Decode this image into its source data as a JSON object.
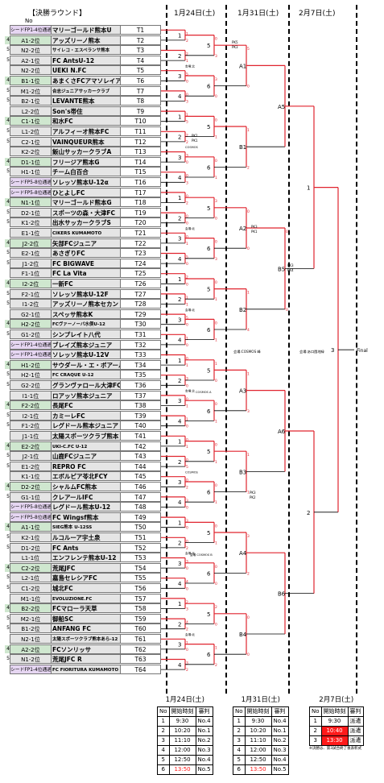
{
  "title": "【決勝ラウンド】",
  "no_label": "No",
  "date_headers": [
    "1月24日(土)",
    "1月31日(土)",
    "2月7日(土)"
  ],
  "teams": [
    {
      "rank": "シードFP1-4位通過",
      "name": "マリーゴールド熊本U",
      "t": "T1"
    },
    {
      "rank": "A1-2位",
      "name": "アッズリーノ熊本",
      "t": "T2"
    },
    {
      "rank": "N2-2位",
      "name": "サイレコ・エスペランサ熊本",
      "t": "T3"
    },
    {
      "rank": "A2-1位",
      "name": "FC AntsU-12",
      "t": "T4"
    },
    {
      "rank": "N2-2位",
      "name": "UEKI N.FC",
      "t": "T5"
    },
    {
      "rank": "B1-1位",
      "name": "あまくさFCアマソレイア",
      "t": "T6"
    },
    {
      "rank": "M1-2位",
      "name": "合志ジュニアサッカークラブ",
      "t": "T7"
    },
    {
      "rank": "B2-1位",
      "name": "LEVANTE熊本",
      "t": "T8"
    },
    {
      "rank": "L2-2位",
      "name": "Son's帯住",
      "t": "T9"
    },
    {
      "rank": "C1-1位",
      "name": "和水FC",
      "t": "T10"
    },
    {
      "rank": "L1-2位",
      "name": "アルフィーオ熊本FC",
      "t": "T11"
    },
    {
      "rank": "C2-1位",
      "name": "VAINQUEUR熊本",
      "t": "T12"
    },
    {
      "rank": "K2-2位",
      "name": "飯山サッカークラブA",
      "t": "T13"
    },
    {
      "rank": "D1-1位",
      "name": "フリージア熊本G",
      "t": "T14"
    },
    {
      "rank": "H1-1位",
      "name": "チーム白百合",
      "t": "T15"
    },
    {
      "rank": "シードFP5-8位通過",
      "name": "ソレッソ熊本U-12α",
      "t": "T16"
    },
    {
      "rank": "シードFP5-8位通過",
      "name": "ひとよしFC",
      "t": "T17"
    },
    {
      "rank": "N1-1位",
      "name": "マリーゴールド熊本G",
      "t": "T18"
    },
    {
      "rank": "D2-1位",
      "name": "スポーツの森・大津FC",
      "t": "T19"
    },
    {
      "rank": "K1-2位",
      "name": "出水サッカークラブS",
      "t": "T20"
    },
    {
      "rank": "E1-1位",
      "name": "CIKERS KUMAMOTO",
      "t": "T21"
    },
    {
      "rank": "J2-2位",
      "name": "矢部FCジュニア",
      "t": "T22"
    },
    {
      "rank": "E2-1位",
      "name": "あさぎりFC",
      "t": "T23"
    },
    {
      "rank": "J1-2位",
      "name": "FC BIGWAVE",
      "t": "T24"
    },
    {
      "rank": "F1-1位",
      "name": "FC La Vita",
      "t": "T25"
    },
    {
      "rank": "I2-2位",
      "name": "一新FC",
      "t": "T26"
    },
    {
      "rank": "F2-1位",
      "name": "ソレッソ熊本U-12F",
      "t": "T27"
    },
    {
      "rank": "I1-2位",
      "name": "アッズリーノ熊本セカンド",
      "t": "T28"
    },
    {
      "rank": "G2-1位",
      "name": "スペッサ熊本K",
      "t": "T29"
    },
    {
      "rank": "H2-2位",
      "name": "FCヴァーノーバ水俣U-12",
      "t": "T30"
    },
    {
      "rank": "G1-2位",
      "name": "シンプレイト八代",
      "t": "T31"
    },
    {
      "rank": "シードFP1-4位通過",
      "name": "ブレイズ熊本ジュニア",
      "t": "T32"
    },
    {
      "rank": "シードFP1-4位通過",
      "name": "ソレッソ熊本U-12V",
      "t": "T33"
    },
    {
      "rank": "H1-2位",
      "name": "サウダール・エ・ボアール",
      "t": "T34"
    },
    {
      "rank": "H2-1位",
      "name": "FC CRAQUE U-12",
      "t": "T35"
    },
    {
      "rank": "G2-2位",
      "name": "グランヴァロール大津FC",
      "t": "T36"
    },
    {
      "rank": "I1-1位",
      "name": "ロアッソ熊本ジュニア",
      "t": "T37"
    },
    {
      "rank": "F2-2位",
      "name": "長尾FC",
      "t": "T38"
    },
    {
      "rank": "I2-1位",
      "name": "カミーレFC",
      "t": "T39"
    },
    {
      "rank": "F1-2位",
      "name": "レグドール熊本ジュニア",
      "t": "T40"
    },
    {
      "rank": "J1-1位",
      "name": "太陽スポーツクラブ熊本",
      "t": "T41"
    },
    {
      "rank": "E2-2位",
      "name": "UKI-C.FC U-12",
      "t": "T42"
    },
    {
      "rank": "J2-1位",
      "name": "山鹿FCジュニア",
      "t": "T43"
    },
    {
      "rank": "E1-2位",
      "name": "REPRO FC",
      "t": "T44"
    },
    {
      "rank": "K1-1位",
      "name": "エボルピア苓北FCY",
      "t": "T45"
    },
    {
      "rank": "D2-2位",
      "name": "シャルムFC熊本",
      "t": "T46"
    },
    {
      "rank": "G1-1位",
      "name": "クレアールIFC",
      "t": "T47"
    },
    {
      "rank": "シードFP5-8位通過",
      "name": "レグドール熊本U-12",
      "t": "T48"
    },
    {
      "rank": "シードFP5-8位通過",
      "name": "FC Wingsf熊本",
      "t": "T49"
    },
    {
      "rank": "A1-1位",
      "name": "SIEG熊本 U-12SS",
      "t": "T50"
    },
    {
      "rank": "K2-1位",
      "name": "ルコルーア宇土泉",
      "t": "T51"
    },
    {
      "rank": "D1-2位",
      "name": "FC Ants",
      "t": "T52"
    },
    {
      "rank": "L1-1位",
      "name": "エンフレンテ熊本U-12",
      "t": "T53"
    },
    {
      "rank": "C2-2位",
      "name": "荒尾JFC",
      "t": "T54"
    },
    {
      "rank": "L2-1位",
      "name": "嘉島セレシアFC",
      "t": "T55"
    },
    {
      "rank": "C1-2位",
      "name": "城北FC",
      "t": "T56"
    },
    {
      "rank": "M1-1位",
      "name": "EVOLUZIONE.FC",
      "t": "T57"
    },
    {
      "rank": "B2-2位",
      "name": "FCマローラ天草",
      "t": "T58"
    },
    {
      "rank": "M2-1位",
      "name": "御船SC",
      "t": "T59"
    },
    {
      "rank": "B1-2位",
      "name": "ANFANG FC",
      "t": "T60"
    },
    {
      "rank": "N2-1位",
      "name": "太陽スポーツクラブ熊本あら-12",
      "t": "T61"
    },
    {
      "rank": "A2-2位",
      "name": "FCソンリッサ",
      "t": "T62"
    },
    {
      "rank": "N1-2位",
      "name": "荒尾JFC R",
      "t": "T63"
    },
    {
      "rank": "シードFP1-4位通過",
      "name": "FC FIORITURA KUMAMOTO",
      "t": "T64"
    }
  ],
  "r1": [
    {
      "m": "1",
      "s1": "1",
      "s2": "2"
    },
    {
      "m": "2",
      "s1": "2",
      "s2": "1"
    },
    {
      "m": "3",
      "s1": "5",
      "s2": "0"
    },
    {
      "m": "4",
      "s1": "0",
      "s2": "3"
    },
    {
      "m": "1",
      "s1": "1",
      "s2": "5"
    },
    {
      "m": "2",
      "s1": "2",
      "s2": "2"
    },
    {
      "m": "3",
      "s1": "3",
      "s2": "0"
    },
    {
      "m": "4",
      "s1": "0",
      "s2": "3"
    },
    {
      "m": "1",
      "s1": "0",
      "s2": "2"
    },
    {
      "m": "2",
      "s1": "0",
      "s2": "0"
    },
    {
      "m": "3",
      "s1": "0",
      "s2": "1"
    },
    {
      "m": "4",
      "s1": "5",
      "s2": "0"
    },
    {
      "m": "1",
      "s1": "2",
      "s2": "0"
    },
    {
      "m": "2",
      "s1": "1",
      "s2": "1"
    },
    {
      "m": "3",
      "s1": "5",
      "s2": "0"
    },
    {
      "m": "4",
      "s1": "1",
      "s2": "0"
    },
    {
      "m": "1",
      "s1": "0",
      "s2": "1"
    },
    {
      "m": "2",
      "s1": "3",
      "s2": "0"
    },
    {
      "m": "3",
      "s1": "0",
      "s2": "1"
    },
    {
      "m": "4",
      "s1": "1",
      "s2": "0"
    },
    {
      "m": "1",
      "s1": "0",
      "s2": "1"
    },
    {
      "m": "2",
      "s1": "0",
      "s2": "5"
    },
    {
      "m": "3",
      "s1": "0",
      "s2": "2"
    },
    {
      "m": "4",
      "s1": "3",
      "s2": "0"
    },
    {
      "m": "1",
      "s1": "3",
      "s2": "0"
    },
    {
      "m": "2",
      "s1": "0",
      "s2": "2"
    },
    {
      "m": "3",
      "s1": "3",
      "s2": "0"
    },
    {
      "m": "4",
      "s1": "4",
      "s2": "0"
    },
    {
      "m": "1",
      "s1": "2",
      "s2": "3"
    },
    {
      "m": "2",
      "s1": "4",
      "s2": "2"
    },
    {
      "m": "3",
      "s1": "1",
      "s2": "0"
    },
    {
      "m": "4",
      "s1": "3",
      "s2": "2"
    }
  ],
  "r2": [
    {
      "m": "5",
      "s1": "0",
      "s2": "3"
    },
    {
      "m": "6",
      "s1": "3",
      "s2": "0"
    },
    {
      "m": "5",
      "s1": "0",
      "s2": "1"
    },
    {
      "m": "6",
      "s1": "0",
      "s2": "1"
    },
    {
      "m": "5",
      "s1": "3",
      "s2": "0"
    },
    {
      "m": "6",
      "s1": "0",
      "s2": "3"
    },
    {
      "m": "5",
      "s1": "0",
      "s2": "1"
    },
    {
      "m": "6",
      "s1": "0",
      "s2": "1"
    },
    {
      "m": "5",
      "s1": "1",
      "s2": "0"
    },
    {
      "m": "6",
      "s1": "0",
      "s2": "1"
    },
    {
      "m": "5",
      "s1": "0",
      "s2": "1"
    },
    {
      "m": "6",
      "s1": "0",
      "s2": "1"
    },
    {
      "m": "5",
      "s1": "0",
      "s2": "1"
    },
    {
      "m": "6",
      "s1": "0",
      "s2": "0"
    },
    {
      "m": "5",
      "s1": "2",
      "s2": "0"
    },
    {
      "m": "6",
      "s1": "1",
      "s2": "2"
    }
  ],
  "r3": [
    {
      "m": "A1",
      "s1": "5",
      "s2": "0"
    },
    {
      "m": "B1",
      "s1": "1",
      "s2": "2"
    },
    {
      "m": "A2",
      "s1": "0",
      "s2": "0"
    },
    {
      "m": "B2",
      "s1": "1",
      "s2": "4"
    },
    {
      "m": "A3",
      "s1": "1",
      "s2": "3"
    },
    {
      "m": "B3",
      "s1": "1",
      "s2": "1"
    },
    {
      "m": "A4",
      "s1": "3",
      "s2": "2"
    },
    {
      "m": "B4",
      "s1": "0",
      "s2": "0"
    }
  ],
  "r4": [
    {
      "m": "A5",
      "s1": "",
      "s2": ""
    },
    {
      "m": "B5",
      "s1": "0",
      "s2": "0"
    },
    {
      "m": "A6",
      "s1": "",
      "s2": ""
    },
    {
      "m": "B6",
      "s1": "",
      "s2": ""
    }
  ],
  "r5": [
    {
      "m": "1"
    },
    {
      "m": "2"
    }
  ],
  "final": {
    "m": "3",
    "label": "Final"
  },
  "venues": {
    "r1": [
      "会場:北",
      "COSMOS",
      "会場:北",
      "会場:北",
      "会場:北",
      "COSMOS",
      "会場:北",
      "会場:北"
    ],
    "sf_mid": "会場:COSMOS 峰",
    "sf_right": "会場:あ口園地緑",
    "mid1": "COSMOS A",
    "mid2": "会場 COSMOS B"
  },
  "pk_notes": [
    "PK5",
    "PK3",
    "PK2",
    "PK1",
    "PK3",
    "PK1",
    "PK3",
    "PK4",
    "PK3",
    "PK2"
  ],
  "schedules": [
    {
      "title": "1月24日(土)",
      "headers": [
        "No",
        "開始時刻",
        "審判"
      ],
      "rows": [
        [
          "1",
          "9:30",
          "No.4"
        ],
        [
          "2",
          "10:20",
          "No.1"
        ],
        [
          "3",
          "11:10",
          "No.2"
        ],
        [
          "4",
          "12:00",
          "No.3"
        ],
        [
          "5",
          "12:50",
          "No.4"
        ],
        [
          "6",
          "13:50",
          "No.5"
        ]
      ],
      "hl": []
    },
    {
      "title": "1月31日(土)",
      "headers": [
        "No",
        "開始時刻",
        "審判"
      ],
      "rows": [
        [
          "1",
          "9:30",
          "No.4"
        ],
        [
          "2",
          "10:20",
          "No.1"
        ],
        [
          "3",
          "11:10",
          "No.2"
        ],
        [
          "4",
          "12:00",
          "No.3"
        ],
        [
          "5",
          "12:50",
          "No.4"
        ],
        [
          "6",
          "13:50",
          "No.5"
        ]
      ],
      "hl": []
    },
    {
      "title": "2月7日(土)",
      "headers": [
        "No",
        "開始時刻",
        "審判"
      ],
      "rows": [
        [
          "1",
          "9:30",
          "派遣"
        ],
        [
          "2",
          "10:40",
          "派遣"
        ],
        [
          "3",
          "13:30",
          "派遣"
        ]
      ],
      "hl": [
        1,
        2
      ],
      "note": "※決勝は、第3試合終了後表彰式"
    }
  ]
}
